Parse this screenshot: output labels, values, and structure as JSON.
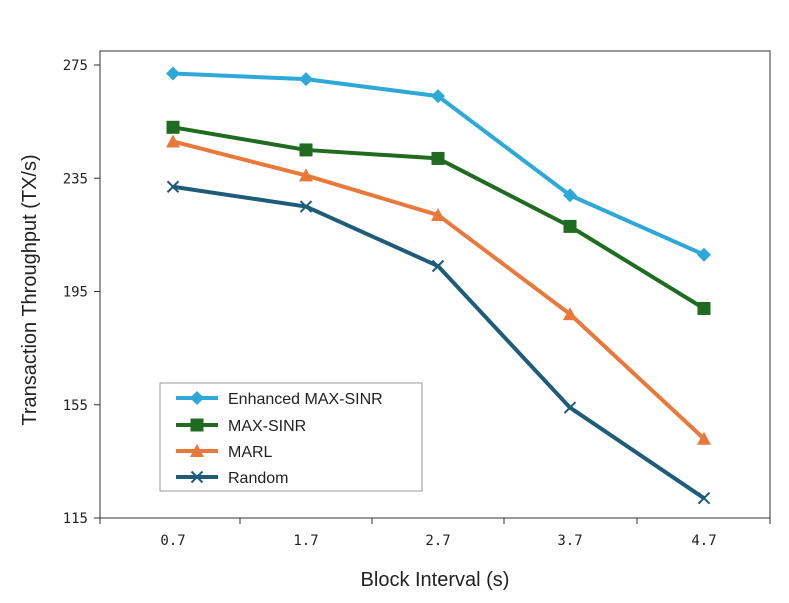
{
  "chart_data": {
    "type": "line",
    "x": [
      0.7,
      1.7,
      2.7,
      3.7,
      4.7
    ],
    "x_tick_labels": [
      "0.7",
      "1.7",
      "2.7",
      "3.7",
      "4.7"
    ],
    "y_ticks": [
      115,
      155,
      195,
      235,
      275
    ],
    "y_tick_labels": [
      "115",
      "155",
      "195",
      "235",
      "275"
    ],
    "ylim": [
      115,
      275
    ],
    "xlabel": "Block Interval (s)",
    "ylabel": "Transaction Throughput (TX/s)",
    "title": "",
    "grid": false,
    "legend_position": "bottom-left",
    "series": [
      {
        "name": "Enhanced MAX-SINR",
        "values": [
          272,
          270,
          264,
          229,
          208
        ],
        "color": "#2ea8d8",
        "marker": "diamond"
      },
      {
        "name": "MAX-SINR",
        "values": [
          253,
          245,
          242,
          218,
          189
        ],
        "color": "#1f6b1f",
        "marker": "square"
      },
      {
        "name": "MARL",
        "values": [
          248,
          236,
          222,
          187,
          143
        ],
        "color": "#e8793a",
        "marker": "triangle"
      },
      {
        "name": "Random",
        "values": [
          232,
          225,
          204,
          154,
          122
        ],
        "color": "#1f5c7a",
        "marker": "x"
      }
    ]
  }
}
